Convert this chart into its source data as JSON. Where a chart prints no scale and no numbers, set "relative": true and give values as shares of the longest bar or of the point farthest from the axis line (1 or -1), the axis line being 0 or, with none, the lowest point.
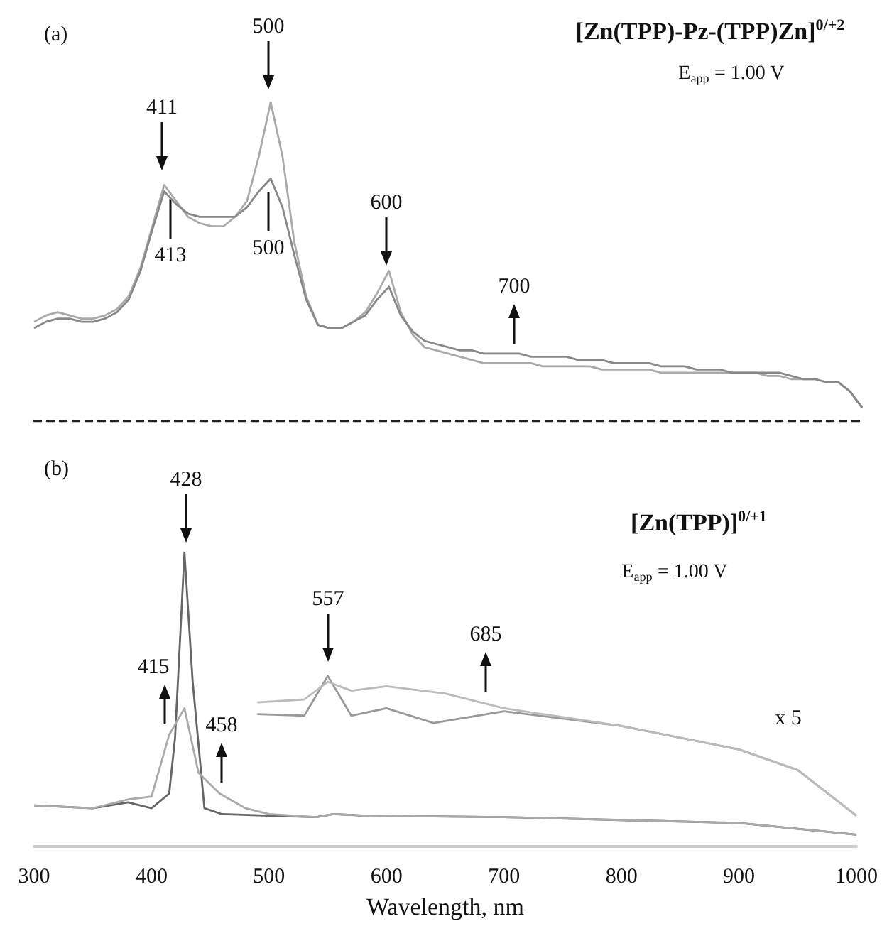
{
  "chart_data": [
    {
      "type": "line",
      "title": "(a)",
      "relative": true,
      "marker": "none",
      "tick_labels": false,
      "categories": [
        null,
        null,
        null,
        null,
        null,
        null,
        null,
        null,
        null,
        null,
        null,
        null,
        null,
        null,
        null,
        null,
        null,
        null,
        null,
        null,
        null,
        null,
        null,
        null,
        null,
        null,
        null,
        null,
        null,
        null,
        null,
        null,
        null,
        null,
        null,
        null,
        null,
        null,
        null,
        null,
        null,
        null,
        null,
        null,
        null,
        null,
        null,
        null,
        null,
        null,
        null,
        null,
        null,
        null,
        null,
        null,
        null,
        null,
        null,
        null,
        null,
        null,
        null,
        null,
        null,
        null,
        null,
        null,
        null,
        null,
        null
      ],
      "series": [
        {
          "color": "#aaaaaa",
          "values": [
            0.31,
            0.33,
            0.34,
            0.33,
            0.32,
            0.32,
            0.33,
            0.35,
            0.39,
            0.48,
            0.61,
            0.74,
            0.69,
            0.64,
            0.62,
            0.61,
            0.61,
            0.64,
            0.69,
            0.83,
            1.0,
            0.83,
            0.56,
            0.39,
            0.3,
            0.29,
            0.29,
            0.31,
            0.34,
            0.4,
            0.47,
            0.34,
            0.27,
            0.23,
            0.22,
            0.21,
            0.2,
            0.19,
            0.18,
            0.18,
            0.18,
            0.18,
            0.18,
            0.17,
            0.17,
            0.17,
            0.17,
            0.17,
            0.16,
            0.16,
            0.16,
            0.16,
            0.16,
            0.15,
            0.15,
            0.15,
            0.15,
            0.15,
            0.15,
            0.15,
            0.15,
            0.15,
            0.14,
            0.14,
            0.13,
            0.13,
            0.13,
            0.12,
            0.12,
            0.09,
            0.04
          ]
        },
        {
          "color": "#888888",
          "values": [
            0.29,
            0.31,
            0.32,
            0.32,
            0.31,
            0.31,
            0.32,
            0.34,
            0.38,
            0.47,
            0.6,
            0.72,
            0.68,
            0.65,
            0.64,
            0.64,
            0.64,
            0.64,
            0.67,
            0.72,
            0.76,
            0.67,
            0.52,
            0.38,
            0.3,
            0.29,
            0.29,
            0.31,
            0.33,
            0.38,
            0.42,
            0.33,
            0.28,
            0.25,
            0.24,
            0.23,
            0.22,
            0.22,
            0.21,
            0.21,
            0.21,
            0.21,
            0.2,
            0.2,
            0.2,
            0.2,
            0.19,
            0.19,
            0.19,
            0.18,
            0.18,
            0.18,
            0.18,
            0.17,
            0.17,
            0.17,
            0.16,
            0.16,
            0.16,
            0.15,
            0.15,
            0.15,
            0.15,
            0.15,
            0.14,
            0.13,
            0.13,
            0.12,
            0.12,
            0.09,
            0.04
          ]
        }
      ],
      "annotations": [
        "411",
        "500",
        "600",
        "700",
        "413",
        "500",
        "[Zn(TPP)-Pz-(TPP)Zn]$^{0/+2}$",
        "E$_{app}$ = 1.00 V"
      ]
    },
    {
      "type": "line",
      "title": "(b)",
      "relative": true,
      "marker": "none",
      "tick_labels": "x",
      "xlabel": "Wavelength, nm",
      "xlim": [
        300,
        1000
      ],
      "xticks": [
        300,
        400,
        500,
        600,
        700,
        800,
        900,
        1000
      ],
      "series": [
        {
          "color": "#666666",
          "x": [
            300,
            350,
            380,
            400,
            415,
            420,
            428,
            435,
            445,
            460,
            500,
            540,
            555,
            580,
            700,
            800,
            900,
            1000
          ],
          "values": [
            0.14,
            0.13,
            0.15,
            0.13,
            0.18,
            0.37,
            1.0,
            0.56,
            0.13,
            0.11,
            0.105,
            0.1,
            0.11,
            0.105,
            0.1,
            0.09,
            0.08,
            0.04
          ]
        },
        {
          "color": "#aaaaaa",
          "x": [
            300,
            350,
            380,
            400,
            415,
            428,
            440,
            458,
            480,
            500,
            540,
            555,
            580,
            700,
            800,
            900,
            1000
          ],
          "values": [
            0.14,
            0.13,
            0.16,
            0.17,
            0.38,
            0.47,
            0.25,
            0.18,
            0.13,
            0.11,
            0.1,
            0.11,
            0.105,
            0.1,
            0.09,
            0.08,
            0.04
          ]
        },
        {
          "color": "#999999",
          "x": [
            490,
            530,
            550,
            570,
            600,
            640,
            700,
            800,
            900,
            950,
            1000
          ],
          "values": [
            0.45,
            0.445,
            0.58,
            0.445,
            0.47,
            0.42,
            0.46,
            0.41,
            0.33,
            0.26,
            0.105
          ]
        },
        {
          "color": "#bbbbbb",
          "x": [
            490,
            530,
            550,
            570,
            600,
            650,
            700,
            800,
            900,
            950,
            1000
          ],
          "values": [
            0.49,
            0.5,
            0.56,
            0.53,
            0.545,
            0.52,
            0.47,
            0.41,
            0.33,
            0.26,
            0.105
          ]
        }
      ],
      "annotations": [
        "428",
        "415",
        "458",
        "557",
        "685",
        "x 5",
        "[Zn(TPP)]$^{0/+1}$",
        "E$_{app}$ = 1.00 V"
      ]
    }
  ]
}
